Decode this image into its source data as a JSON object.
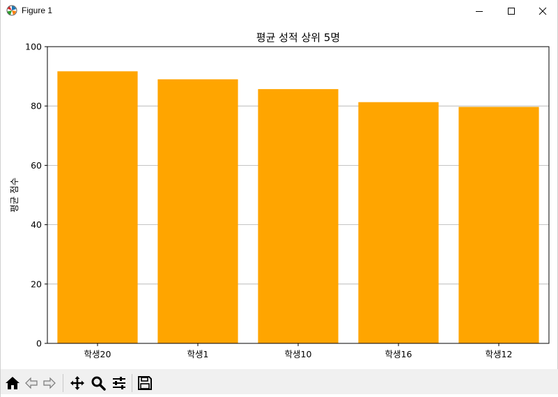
{
  "window": {
    "title": "Figure 1"
  },
  "toolbar": {
    "items": [
      "home-icon",
      "back-icon",
      "forward-icon",
      "pan-icon",
      "zoom-icon",
      "configure-icon",
      "save-icon"
    ]
  },
  "chart_data": {
    "type": "bar",
    "title": "평균 성적 상위 5명",
    "xlabel": "",
    "ylabel": "평균 점수",
    "categories": [
      "학생20",
      "학생1",
      "학생10",
      "학생16",
      "학생12"
    ],
    "values": [
      91.7,
      89.0,
      85.7,
      81.3,
      79.7
    ],
    "ylim": [
      0,
      100
    ],
    "yticks": [
      "0",
      "20",
      "40",
      "60",
      "80",
      "100"
    ],
    "grid": "y",
    "bar_color": "#ffa500"
  }
}
